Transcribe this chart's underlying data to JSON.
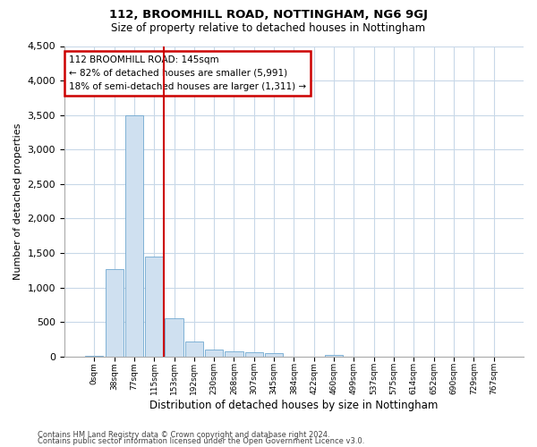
{
  "title1": "112, BROOMHILL ROAD, NOTTINGHAM, NG6 9GJ",
  "title2": "Size of property relative to detached houses in Nottingham",
  "xlabel": "Distribution of detached houses by size in Nottingham",
  "ylabel": "Number of detached properties",
  "bar_color": "#cfe0f0",
  "bar_edge_color": "#6fa8d0",
  "grid_color": "#c8d8e8",
  "vline_color": "#cc0000",
  "vline_x": 3.5,
  "annotation_text": "112 BROOMHILL ROAD: 145sqm\n← 82% of detached houses are smaller (5,991)\n18% of semi-detached houses are larger (1,311) →",
  "annotation_box_color": "#cc0000",
  "categories": [
    "0sqm",
    "38sqm",
    "77sqm",
    "115sqm",
    "153sqm",
    "192sqm",
    "230sqm",
    "268sqm",
    "307sqm",
    "345sqm",
    "384sqm",
    "422sqm",
    "460sqm",
    "499sqm",
    "537sqm",
    "575sqm",
    "614sqm",
    "652sqm",
    "690sqm",
    "729sqm",
    "767sqm"
  ],
  "values": [
    10,
    1270,
    3500,
    1450,
    550,
    215,
    105,
    75,
    60,
    45,
    0,
    0,
    30,
    0,
    0,
    0,
    0,
    0,
    0,
    0,
    0
  ],
  "ylim": [
    0,
    4500
  ],
  "yticks": [
    0,
    500,
    1000,
    1500,
    2000,
    2500,
    3000,
    3500,
    4000,
    4500
  ],
  "footer1": "Contains HM Land Registry data © Crown copyright and database right 2024.",
  "footer2": "Contains public sector information licensed under the Open Government Licence v3.0."
}
